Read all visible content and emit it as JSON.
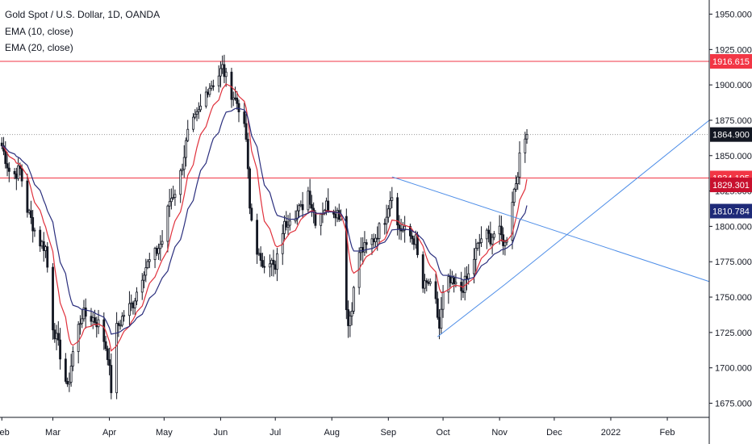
{
  "chart_data": {
    "type": "candlestick",
    "title": "Gold Spot / U.S. Dollar, 1D, OANDA",
    "indicators": [
      {
        "name": "EMA (10, close)",
        "color": "#e0313c"
      },
      {
        "name": "EMA (20, close)",
        "color": "#2a2e7d"
      }
    ],
    "ylim": [
      1665,
      1960
    ],
    "y_ticks": [
      1950,
      1925,
      1900,
      1875,
      1850,
      1825,
      1800,
      1775,
      1750,
      1725,
      1700,
      1675
    ],
    "y_tick_labels": [
      "1950.000",
      "1925.000",
      "1900.000",
      "1875.000",
      "1850.000",
      "1825.000",
      "1800.000",
      "1775.000",
      "1750.000",
      "1725.000",
      "1700.000",
      "1675.000"
    ],
    "x_ticks": [
      {
        "label": "Feb",
        "day": 0
      },
      {
        "label": "Mar",
        "day": 28
      },
      {
        "label": "Apr",
        "day": 59
      },
      {
        "label": "May",
        "day": 89
      },
      {
        "label": "Jun",
        "day": 120
      },
      {
        "label": "Jul",
        "day": 150
      },
      {
        "label": "Aug",
        "day": 181
      },
      {
        "label": "Sep",
        "day": 212
      },
      {
        "label": "Oct",
        "day": 242
      },
      {
        "label": "Nov",
        "day": 273
      },
      {
        "label": "Dec",
        "day": 303
      },
      {
        "label": "2022",
        "day": 334
      },
      {
        "label": "Feb",
        "day": 365
      }
    ],
    "x_range_days": [
      -1,
      388
    ],
    "horizontal_lines": [
      {
        "value": 1916.615,
        "color": "#f23645",
        "style": "solid"
      },
      {
        "value": 1834.195,
        "color": "#f23645",
        "style": "solid"
      },
      {
        "value": 1864.9,
        "color": "#9a9a9a",
        "style": "dotted"
      }
    ],
    "price_labels": [
      {
        "value": 1916.615,
        "text": "1916.615",
        "bg": "#f23645"
      },
      {
        "value": 1864.9,
        "text": "1864.900",
        "bg": "#131722"
      },
      {
        "value": 1834.195,
        "text": "1834.195",
        "bg": "#f23645"
      },
      {
        "value": 1829.301,
        "text": "1829.301",
        "bg": "#c8102e"
      },
      {
        "value": 1810.784,
        "text": "1810.784",
        "bg": "#1e2a78"
      }
    ],
    "trendlines": [
      {
        "from": {
          "day": 214,
          "value": 1835
        },
        "to": {
          "day": 388,
          "value": 1761
        },
        "color": "#4e8ee8"
      },
      {
        "from": {
          "day": 239,
          "value": 1722
        },
        "to": {
          "day": 276,
          "value": 1759
        },
        "color": "#4e8ee8"
      },
      {
        "from": {
          "day": 276,
          "value": 1759
        },
        "to": {
          "day": 388,
          "value": 1875
        },
        "color": "#4e8ee8"
      }
    ],
    "anchor_points": [
      {
        "day": 0,
        "value": 1857
      },
      {
        "day": 5,
        "value": 1835
      },
      {
        "day": 10,
        "value": 1840
      },
      {
        "day": 14,
        "value": 1812
      },
      {
        "day": 20,
        "value": 1790
      },
      {
        "day": 24,
        "value": 1785
      },
      {
        "day": 28,
        "value": 1730
      },
      {
        "day": 33,
        "value": 1705
      },
      {
        "day": 36,
        "value": 1684
      },
      {
        "day": 40,
        "value": 1720
      },
      {
        "day": 44,
        "value": 1738
      },
      {
        "day": 50,
        "value": 1735
      },
      {
        "day": 54,
        "value": 1730
      },
      {
        "day": 58,
        "value": 1710
      },
      {
        "day": 60,
        "value": 1685
      },
      {
        "day": 62,
        "value": 1725
      },
      {
        "day": 67,
        "value": 1738
      },
      {
        "day": 72,
        "value": 1746
      },
      {
        "day": 78,
        "value": 1770
      },
      {
        "day": 84,
        "value": 1780
      },
      {
        "day": 88,
        "value": 1790
      },
      {
        "day": 92,
        "value": 1818
      },
      {
        "day": 97,
        "value": 1830
      },
      {
        "day": 102,
        "value": 1865
      },
      {
        "day": 108,
        "value": 1880
      },
      {
        "day": 113,
        "value": 1898
      },
      {
        "day": 118,
        "value": 1905
      },
      {
        "day": 121,
        "value": 1912
      },
      {
        "day": 125,
        "value": 1897
      },
      {
        "day": 130,
        "value": 1885
      },
      {
        "day": 134,
        "value": 1862
      },
      {
        "day": 136,
        "value": 1812
      },
      {
        "day": 139,
        "value": 1790
      },
      {
        "day": 142,
        "value": 1772
      },
      {
        "day": 146,
        "value": 1780
      },
      {
        "day": 150,
        "value": 1768
      },
      {
        "day": 153,
        "value": 1795
      },
      {
        "day": 158,
        "value": 1808
      },
      {
        "day": 164,
        "value": 1812
      },
      {
        "day": 168,
        "value": 1825
      },
      {
        "day": 172,
        "value": 1805
      },
      {
        "day": 178,
        "value": 1815
      },
      {
        "day": 182,
        "value": 1812
      },
      {
        "day": 186,
        "value": 1808
      },
      {
        "day": 188,
        "value": 1760
      },
      {
        "day": 190,
        "value": 1730
      },
      {
        "day": 192,
        "value": 1745
      },
      {
        "day": 196,
        "value": 1782
      },
      {
        "day": 200,
        "value": 1785
      },
      {
        "day": 205,
        "value": 1793
      },
      {
        "day": 210,
        "value": 1806
      },
      {
        "day": 214,
        "value": 1825
      },
      {
        "day": 217,
        "value": 1800
      },
      {
        "day": 222,
        "value": 1795
      },
      {
        "day": 227,
        "value": 1790
      },
      {
        "day": 230,
        "value": 1755
      },
      {
        "day": 234,
        "value": 1760
      },
      {
        "day": 238,
        "value": 1745
      },
      {
        "day": 240,
        "value": 1728
      },
      {
        "day": 243,
        "value": 1762
      },
      {
        "day": 248,
        "value": 1758
      },
      {
        "day": 252,
        "value": 1755
      },
      {
        "day": 256,
        "value": 1765
      },
      {
        "day": 260,
        "value": 1782
      },
      {
        "day": 264,
        "value": 1795
      },
      {
        "day": 268,
        "value": 1792
      },
      {
        "day": 272,
        "value": 1798
      },
      {
        "day": 276,
        "value": 1787
      },
      {
        "day": 278,
        "value": 1800
      },
      {
        "day": 280,
        "value": 1820
      },
      {
        "day": 282,
        "value": 1832
      },
      {
        "day": 285,
        "value": 1855
      },
      {
        "day": 288,
        "value": 1864.9
      }
    ],
    "colors": {
      "up": "#ffffff",
      "down": "#131722",
      "wick": "#131722",
      "grid": "#ffffff",
      "axis_text": "#131722"
    },
    "grid": false,
    "legend_position": "top-left"
  }
}
